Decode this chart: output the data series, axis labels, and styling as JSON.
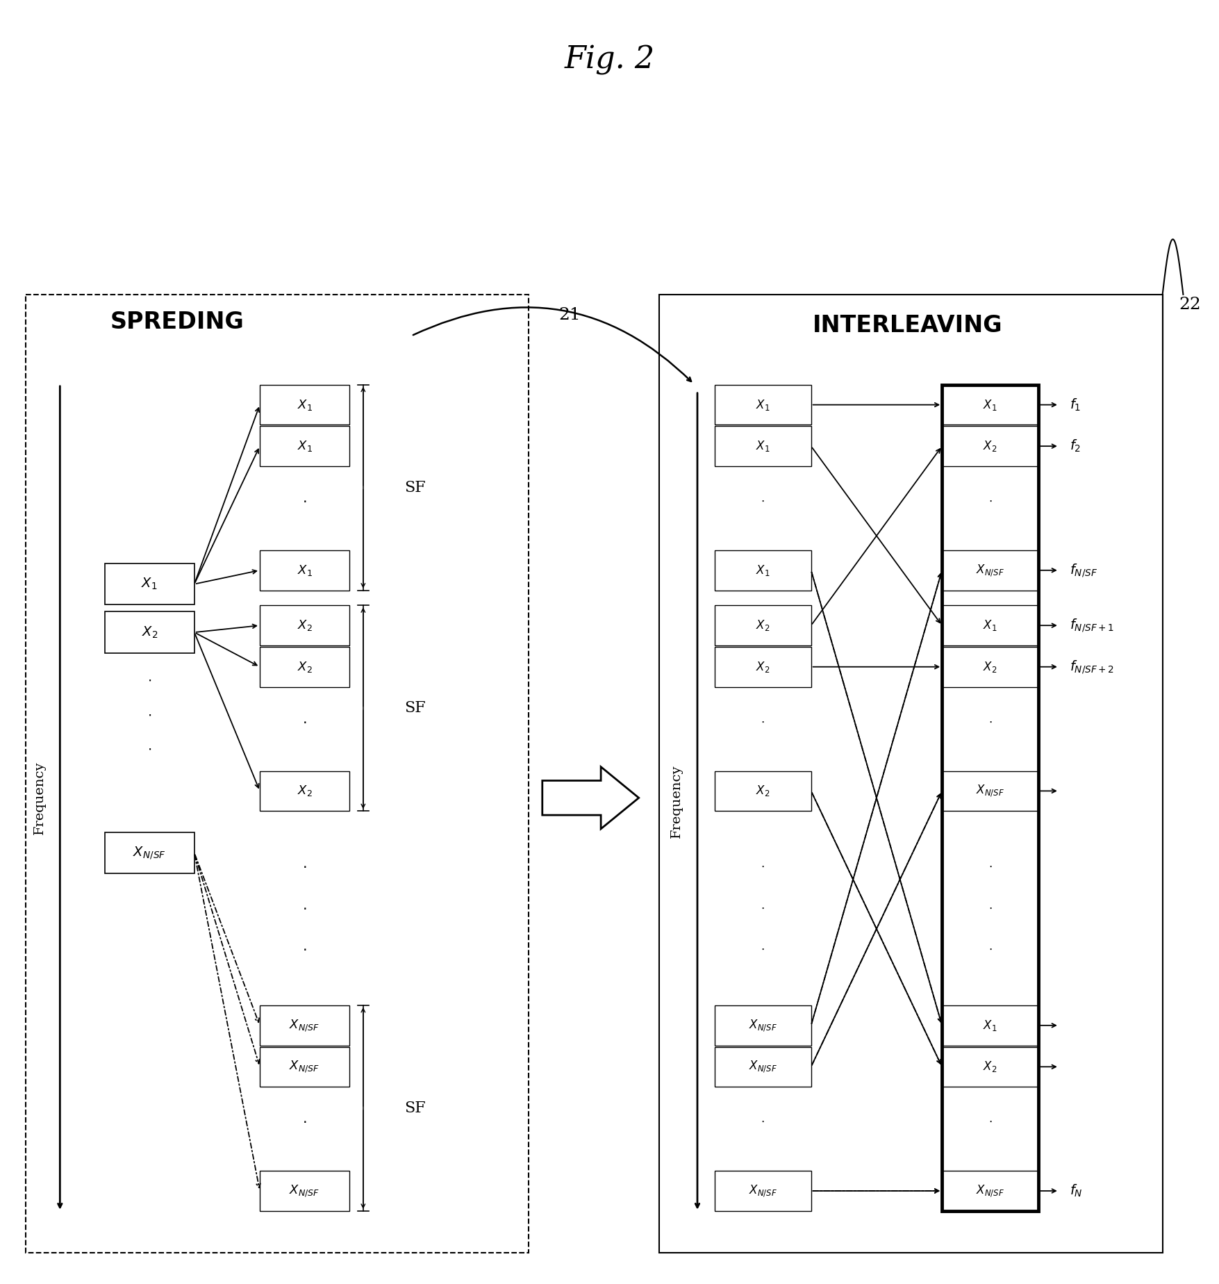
{
  "title": "Fig. 2",
  "bg_color": "#ffffff",
  "left_panel_title": "SPREDING",
  "right_panel_title": "INTERLEAVING",
  "label_21": "21",
  "label_22": "22",
  "sf_label": "SF",
  "frequency_label": "Frequency"
}
